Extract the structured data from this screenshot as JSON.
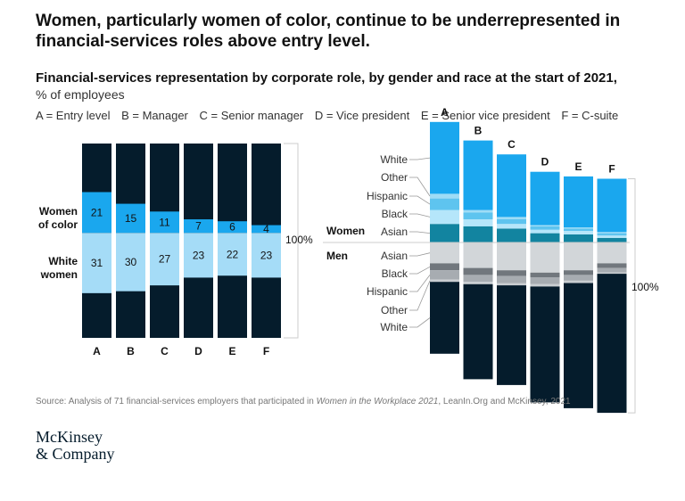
{
  "headline": "Women, particularly women of color, continue to be underrepresented in financial-services roles above entry level.",
  "subtitle": "Financial-services representation by corporate role, by gender and race at the start of 2021,",
  "unit": "% of employees",
  "role_legend": [
    "A = Entry level",
    "B = Manager",
    "C = Senior manager",
    "D = Vice president",
    "E = Senior vice president",
    "F = C-suite"
  ],
  "source": {
    "prefix": "Source: Analysis of 71 financial-services employers that participated in ",
    "title": "Women in the Workplace 2021",
    "suffix": ", LeanIn.Org and McKinsey, 2021"
  },
  "logo": {
    "line1": "McKinsey",
    "line2": "& Company"
  },
  "colors": {
    "dark_navy": "#051c2c",
    "women_of_color": "#1aa7ee",
    "white_women": "#a5dcf7",
    "women_white_right": "#1aa7ee",
    "women_other": "#9edcf6",
    "women_hispanic": "#5ec4ef",
    "women_black": "#b5e6fa",
    "women_asian": "#1284a0",
    "men_asian": "#d2d6d9",
    "men_black": "#71777d",
    "men_hispanic": "#a7acb1",
    "men_other": "#c9cdd1",
    "men_white": "#051c2c",
    "text_dark": "#111111",
    "grid": "#cccccc"
  },
  "chart_data": [
    {
      "type": "bar",
      "stacked": true,
      "categories": [
        "A",
        "B",
        "C",
        "D",
        "E",
        "F"
      ],
      "series": [
        {
          "name": "Women of color",
          "values": [
            21,
            15,
            11,
            7,
            6,
            4
          ]
        },
        {
          "name": "White women",
          "values": [
            31,
            30,
            27,
            23,
            22,
            23
          ]
        }
      ],
      "total_label": "100%",
      "ylim": [
        0,
        100
      ]
    },
    {
      "type": "bar",
      "stacked": true,
      "diverging": true,
      "categories": [
        "A",
        "B",
        "C",
        "D",
        "E",
        "F"
      ],
      "women_label": "Women",
      "men_label": "Men",
      "women_series": [
        {
          "name": "White",
          "values": [
            31,
            30,
            27,
            23,
            22,
            23
          ]
        },
        {
          "name": "Other",
          "values": [
            2,
            1,
            1,
            0.5,
            0.5,
            0.5
          ]
        },
        {
          "name": "Hispanic",
          "values": [
            5,
            3,
            2,
            1.5,
            1,
            1
          ]
        },
        {
          "name": "Black",
          "values": [
            6,
            3,
            2,
            1.5,
            1.5,
            1
          ]
        },
        {
          "name": "Asian",
          "values": [
            8,
            7,
            6,
            4,
            3.5,
            2
          ]
        }
      ],
      "men_series": [
        {
          "name": "Asian",
          "values": [
            9,
            11,
            12,
            13,
            12,
            9
          ]
        },
        {
          "name": "Black",
          "values": [
            3,
            3,
            2.5,
            2,
            2,
            2
          ]
        },
        {
          "name": "Hispanic",
          "values": [
            4,
            3,
            3,
            3,
            2.5,
            2
          ]
        },
        {
          "name": "Other",
          "values": [
            1,
            1,
            1,
            1,
            1,
            0.5
          ]
        },
        {
          "name": "White",
          "values": [
            31,
            41,
            43,
            50,
            54,
            60
          ]
        }
      ],
      "total_label": "100%"
    }
  ]
}
